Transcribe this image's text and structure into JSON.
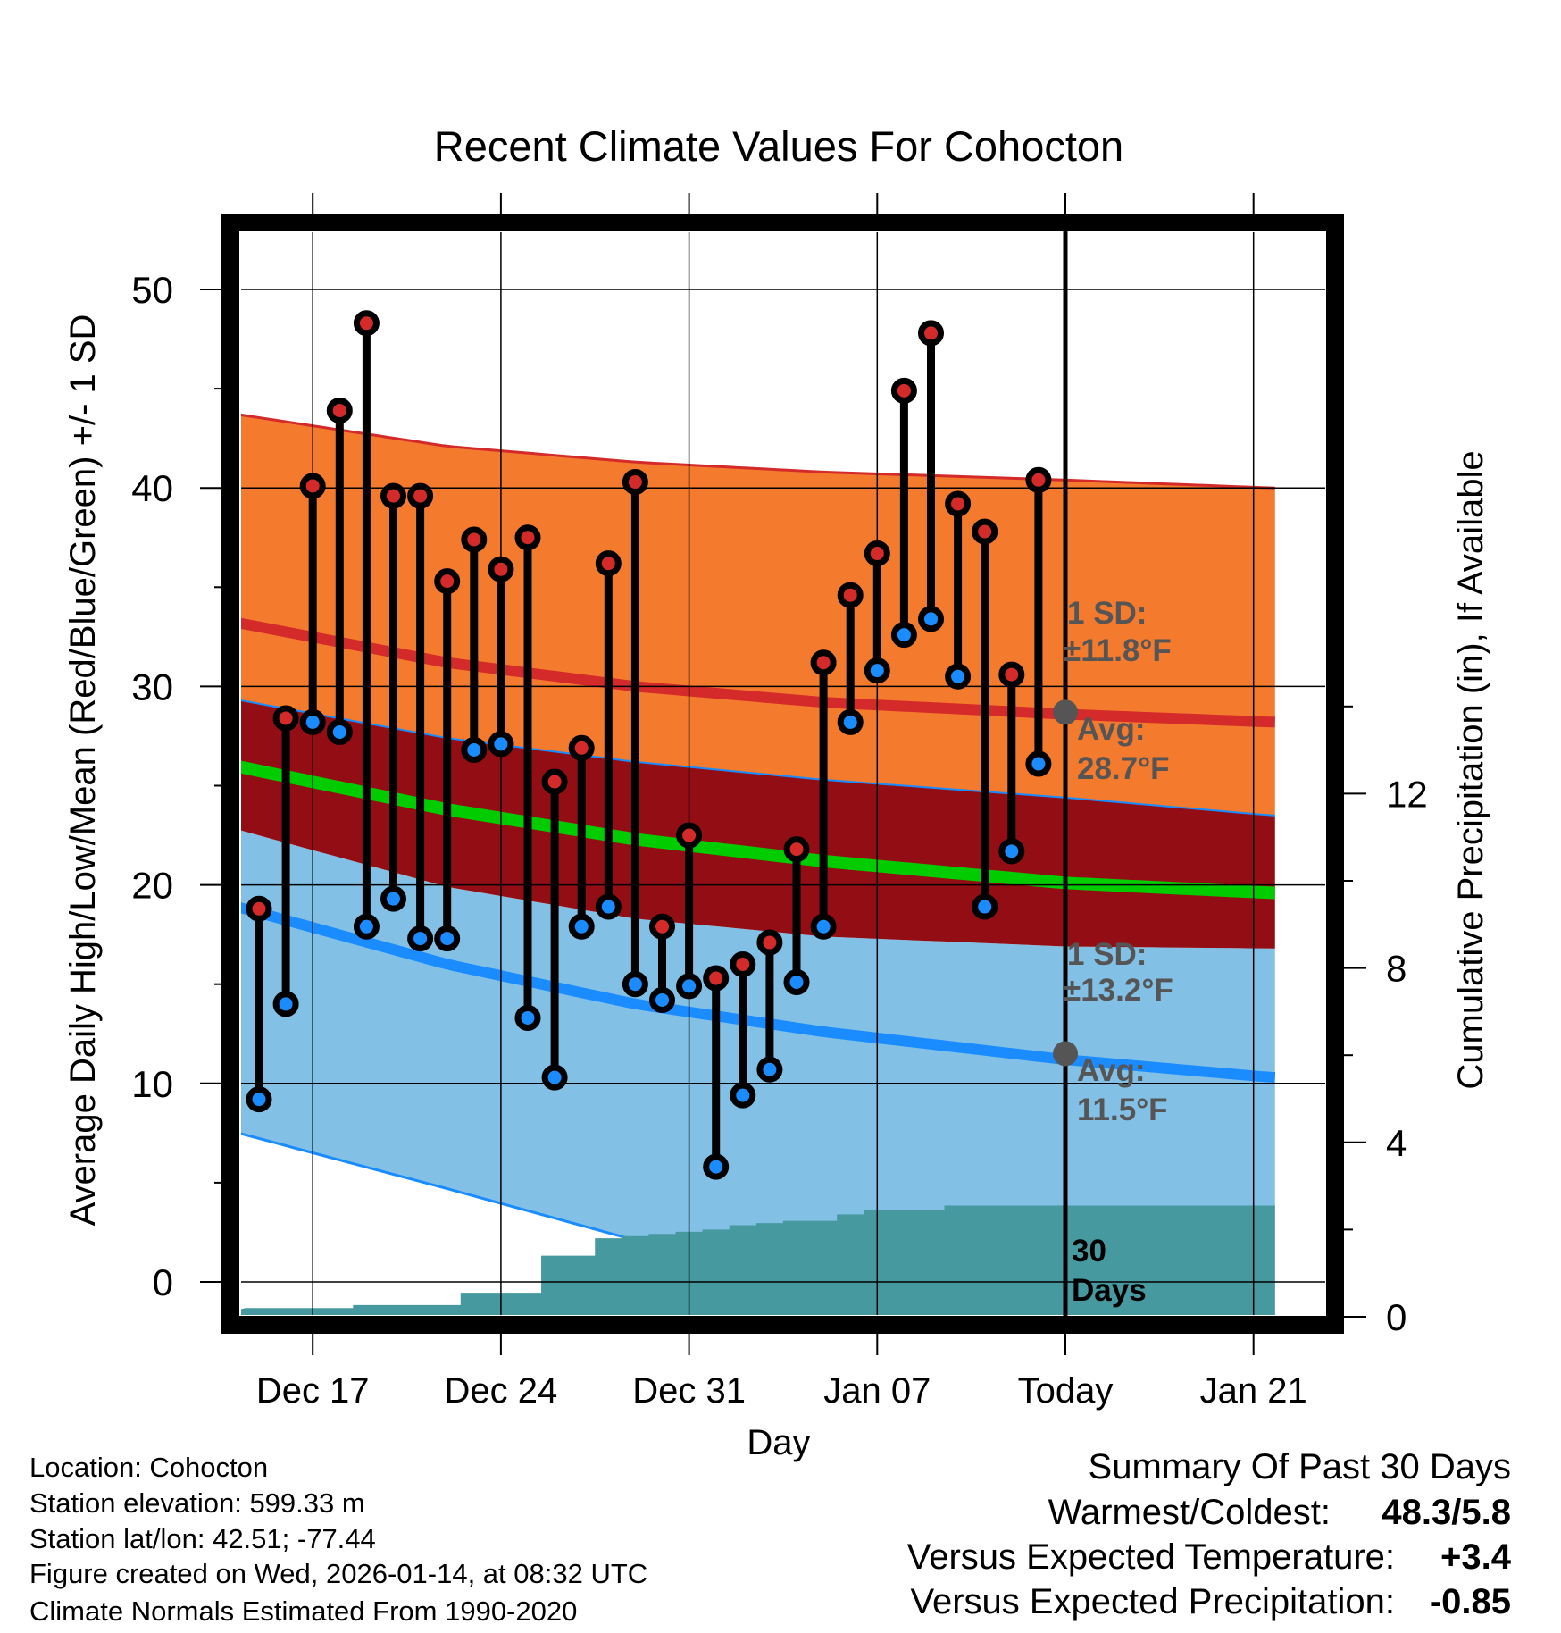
{
  "chart_data": {
    "type": "line",
    "title": "Recent Climate Values For Cohocton",
    "xlabel": "Day",
    "ylabel": "Average Daily High/Low/Mean (Red/Blue/Green) +/- 1 SD",
    "y2label": "Cumulative Precipitation (in), If Available",
    "ylim": [
      -1.7,
      52.9
    ],
    "y2lim": [
      0,
      15.2
    ],
    "yticks": [
      "0",
      "10",
      "20",
      "30",
      "40",
      "50"
    ],
    "y2ticks": [
      "0",
      "4",
      "8",
      "12"
    ],
    "xticks": [
      "Dec 17",
      "Dec 24",
      "Dec 31",
      "Jan 07",
      "Today",
      "Jan 21"
    ],
    "dates": [
      "Dec 15",
      "Dec 16",
      "Dec 17",
      "Dec 18",
      "Dec 19",
      "Dec 20",
      "Dec 21",
      "Dec 22",
      "Dec 23",
      "Dec 24",
      "Dec 25",
      "Dec 26",
      "Dec 27",
      "Dec 28",
      "Dec 29",
      "Dec 30",
      "Dec 31",
      "Jan 01",
      "Jan 02",
      "Jan 03",
      "Jan 04",
      "Jan 05",
      "Jan 06",
      "Jan 07",
      "Jan 08",
      "Jan 09",
      "Jan 10",
      "Jan 11",
      "Jan 12",
      "Jan 13"
    ],
    "highs": [
      18.8,
      28.4,
      40.1,
      43.9,
      48.3,
      39.6,
      39.6,
      35.3,
      37.4,
      35.9,
      37.5,
      25.2,
      26.9,
      36.2,
      40.3,
      17.9,
      22.5,
      15.3,
      16.0,
      17.1,
      21.8,
      31.2,
      34.6,
      36.7,
      44.9,
      47.8,
      39.2,
      37.8,
      30.6,
      40.4
    ],
    "lows": [
      9.2,
      14.0,
      28.2,
      27.7,
      17.9,
      19.3,
      17.3,
      17.3,
      26.8,
      27.1,
      13.3,
      10.3,
      17.9,
      18.9,
      15.0,
      14.2,
      14.9,
      5.8,
      9.4,
      10.7,
      15.1,
      17.9,
      28.2,
      30.8,
      32.6,
      33.4,
      30.5,
      18.9,
      21.7,
      26.1
    ],
    "precip_cumulative": [
      0.2,
      0.2,
      0.2,
      0.2,
      0.27,
      0.27,
      0.27,
      0.27,
      0.55,
      0.55,
      0.55,
      1.4,
      1.4,
      1.8,
      1.85,
      1.9,
      1.95,
      2.0,
      2.1,
      2.15,
      2.2,
      2.2,
      2.35,
      2.45,
      2.45,
      2.45,
      2.55,
      2.55,
      2.55,
      2.55
    ],
    "normals": {
      "days": [
        -2.7,
        7,
        14,
        21,
        30,
        37.7
      ],
      "high_avg": [
        33.7,
        31.2,
        30.0,
        29.2,
        28.6,
        28.2
      ],
      "high_plus_sd": [
        44.1,
        42.1,
        41.3,
        40.8,
        40.4,
        40.0
      ],
      "high_minus_sd": [
        29.8,
        27.4,
        26.2,
        25.3,
        24.4,
        23.5
      ],
      "mean": [
        26.5,
        23.8,
        22.3,
        21.2,
        20.1,
        19.6
      ],
      "low_avg": [
        19.6,
        16.0,
        14.0,
        12.6,
        11.2,
        10.3
      ],
      "low_plus_sd": [
        23.5,
        19.9,
        18.3,
        17.4,
        16.9,
        16.8
      ],
      "low_minus_sd": [
        8.2,
        4.7,
        2.1,
        -0.3,
        -3.0,
        -5.0
      ]
    },
    "today_index": 30,
    "annotations": {
      "high_sd_label": "1 SD:",
      "high_sd_value": "±11.8°F",
      "high_avg_label": "Avg:",
      "high_avg_value": "28.7°F",
      "low_sd_label": "1 SD:",
      "low_sd_value": "±13.2°F",
      "low_avg_label": "Avg:",
      "low_avg_value": "11.5°F",
      "period_number": "30",
      "period_unit": "Days"
    },
    "colors": {
      "high": "#d42a2a",
      "low": "#1a8cff",
      "mean": "#00cc00",
      "high_band": "#f47a2e",
      "overlap": "#930e14",
      "low_band": "#82c0e6",
      "precip": "#46999f"
    }
  },
  "info": {
    "location": "Location: Cohocton",
    "elevation": "Station elevation: 599.33 m",
    "latlon": "Station lat/lon: 42.51; -77.44",
    "created": "Figure created on Wed, 2026-01-14, at 08:32 UTC",
    "normals": "Climate Normals Estimated From 1990-2020"
  },
  "summary": {
    "title": "Summary Of Past 30 Days",
    "warmest_label": "Warmest/Coldest:",
    "warmest_value": "48.3/5.8",
    "temp_label": "Versus Expected Temperature:",
    "temp_value": "+3.4",
    "temp_color": "#d42a2a",
    "precip_label": "Versus Expected Precipitation:",
    "precip_value": "-0.85",
    "precip_color": "#a0522d"
  }
}
